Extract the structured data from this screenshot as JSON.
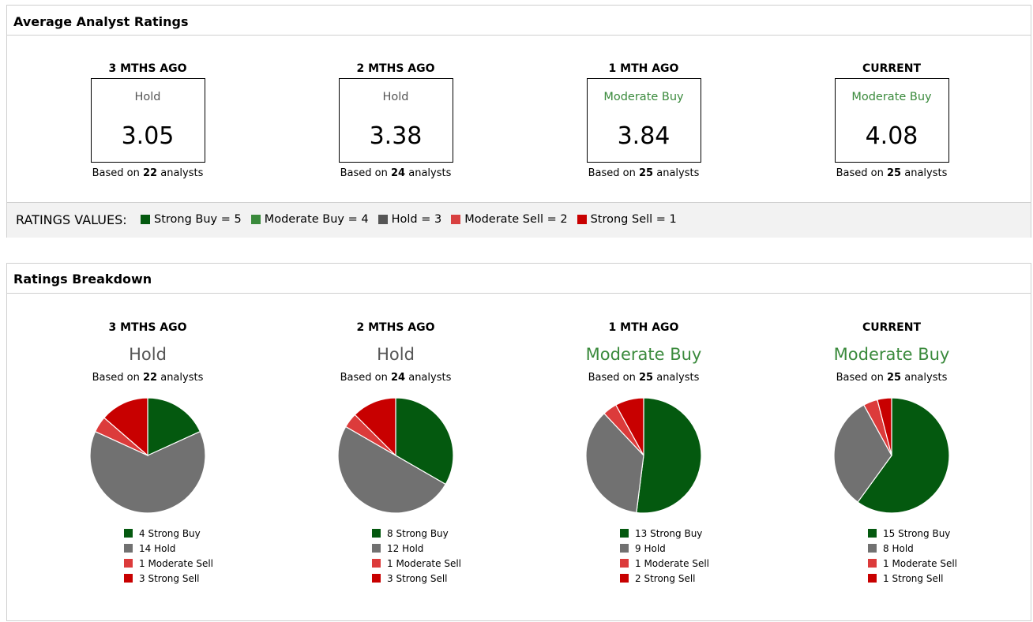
{
  "average_section": {
    "title": "Average Analyst Ratings",
    "periods": [
      {
        "label": "3 MTHS AGO",
        "rating": "Hold",
        "score": "3.05",
        "analysts": "22"
      },
      {
        "label": "2 MTHS AGO",
        "rating": "Hold",
        "score": "3.38",
        "analysts": "24"
      },
      {
        "label": "1 MTH AGO",
        "rating": "Moderate Buy",
        "score": "3.84",
        "analysts": "25"
      },
      {
        "label": "CURRENT",
        "rating": "Moderate Buy",
        "score": "4.08",
        "analysts": "25"
      }
    ],
    "based_prefix": "Based on",
    "based_suffix": "analysts"
  },
  "ratings_values": {
    "label": "RATINGS VALUES:",
    "items": [
      {
        "text": "Strong Buy = 5",
        "color": "#04590f"
      },
      {
        "text": "Moderate Buy = 4",
        "color": "#3a8a3c"
      },
      {
        "text": "Hold = 3",
        "color": "#555555"
      },
      {
        "text": "Moderate Sell = 2",
        "color": "#d84040"
      },
      {
        "text": "Strong Sell = 1",
        "color": "#c80000"
      }
    ]
  },
  "colors": {
    "hold_text": "#555555",
    "buy_text": "#3a8a3c",
    "strong_buy": "#04590f",
    "hold": "#717171",
    "moderate_sell": "#dc3b3b",
    "strong_sell": "#c80000"
  },
  "breakdown_section": {
    "title": "Ratings Breakdown"
  },
  "chart_data": [
    {
      "type": "pie",
      "title": "3 MTHS AGO",
      "subtitle": "Hold",
      "analysts": "22",
      "categories": [
        "Strong Buy",
        "Hold",
        "Moderate Sell",
        "Strong Sell"
      ],
      "values": [
        4,
        14,
        1,
        3
      ],
      "legend": [
        "4 Strong Buy",
        "14 Hold",
        "1 Moderate Sell",
        "3 Strong Sell"
      ]
    },
    {
      "type": "pie",
      "title": "2 MTHS AGO",
      "subtitle": "Hold",
      "analysts": "24",
      "categories": [
        "Strong Buy",
        "Hold",
        "Moderate Sell",
        "Strong Sell"
      ],
      "values": [
        8,
        12,
        1,
        3
      ],
      "legend": [
        "8 Strong Buy",
        "12 Hold",
        "1 Moderate Sell",
        "3 Strong Sell"
      ]
    },
    {
      "type": "pie",
      "title": "1 MTH AGO",
      "subtitle": "Moderate Buy",
      "analysts": "25",
      "categories": [
        "Strong Buy",
        "Hold",
        "Moderate Sell",
        "Strong Sell"
      ],
      "values": [
        13,
        9,
        1,
        2
      ],
      "legend": [
        "13 Strong Buy",
        "9 Hold",
        "1 Moderate Sell",
        "2 Strong Sell"
      ]
    },
    {
      "type": "pie",
      "title": "CURRENT",
      "subtitle": "Moderate Buy",
      "analysts": "25",
      "categories": [
        "Strong Buy",
        "Hold",
        "Moderate Sell",
        "Strong Sell"
      ],
      "values": [
        15,
        8,
        1,
        1
      ],
      "legend": [
        "15 Strong Buy",
        "8 Hold",
        "1 Moderate Sell",
        "1 Strong Sell"
      ]
    }
  ]
}
